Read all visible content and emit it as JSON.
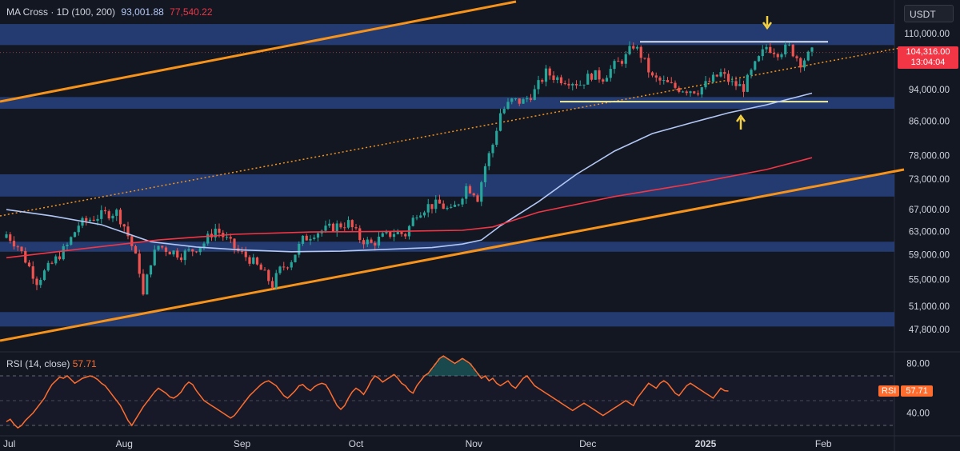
{
  "header": {
    "title": "MA Cross · 1D (100, 200)",
    "ma100_value": "93,001.88",
    "ma200_value": "77,540.22"
  },
  "currency": "USDT",
  "last_price": {
    "value": "104,316.00",
    "countdown": "13:04:04"
  },
  "rsi_header": {
    "label": "RSI (14, close)",
    "value": "57.71"
  },
  "rsi_tag": {
    "label": "RSI",
    "value": "57.71"
  },
  "colors": {
    "background": "#131722",
    "up": "#26a69a",
    "down": "#ef5350",
    "zone": "#2a4a8f",
    "trendline": "#f7931a",
    "ma100": "#b3c7f5",
    "ma200": "#f23645",
    "rsi": "#ff6d2e",
    "range_box": "#f0f0a0"
  },
  "chart_data": {
    "type": "candlestick",
    "scale": "log",
    "y_ticks": [
      "110,000.00",
      "94,000.00",
      "86,000.00",
      "78,000.00",
      "73,000.00",
      "67,000.00",
      "63,000.00",
      "59,000.00",
      "55,000.00",
      "51,000.00",
      "47,800.00"
    ],
    "y_tick_values": [
      110000,
      94000,
      86000,
      78000,
      73000,
      67000,
      63000,
      59000,
      55000,
      51000,
      47800
    ],
    "x_ticks": [
      "Jul",
      "Aug",
      "Sep",
      "Oct",
      "Nov",
      "Dec",
      "2025",
      "Jan_blank",
      "Feb"
    ],
    "x_labels": [
      "Jul",
      "Aug",
      "Sep",
      "Oct",
      "Nov",
      "Dec",
      "2025",
      "Feb"
    ],
    "x_label_days": [
      0,
      31,
      62,
      92,
      123,
      153,
      184,
      215
    ],
    "ylim": [
      46000,
      125000
    ],
    "close_anchors": [
      [
        0,
        62500
      ],
      [
        3,
        60500
      ],
      [
        6,
        57000
      ],
      [
        8,
        54800
      ],
      [
        12,
        57500
      ],
      [
        16,
        60500
      ],
      [
        19,
        64200
      ],
      [
        22,
        65200
      ],
      [
        26,
        66200
      ],
      [
        29,
        66500
      ],
      [
        31,
        64000
      ],
      [
        33,
        60500
      ],
      [
        35,
        56500
      ],
      [
        36,
        52500
      ],
      [
        38,
        58000
      ],
      [
        40,
        60500
      ],
      [
        43,
        59700
      ],
      [
        46,
        59000
      ],
      [
        49,
        59800
      ],
      [
        52,
        61000
      ],
      [
        55,
        63500
      ],
      [
        58,
        61500
      ],
      [
        61,
        59500
      ],
      [
        64,
        58300
      ],
      [
        67,
        56500
      ],
      [
        70,
        54200
      ],
      [
        72,
        56500
      ],
      [
        75,
        58200
      ],
      [
        78,
        61500
      ],
      [
        81,
        62800
      ],
      [
        84,
        63300
      ],
      [
        87,
        64000
      ],
      [
        90,
        64500
      ],
      [
        93,
        61800
      ],
      [
        96,
        60800
      ],
      [
        99,
        62000
      ],
      [
        102,
        62800
      ],
      [
        105,
        62500
      ],
      [
        108,
        66500
      ],
      [
        111,
        67700
      ],
      [
        114,
        68000
      ],
      [
        117,
        66600
      ],
      [
        119,
        68500
      ],
      [
        121,
        71500
      ],
      [
        123,
        70500
      ],
      [
        124,
        69300
      ],
      [
        126,
        75800
      ],
      [
        128,
        80500
      ],
      [
        130,
        88000
      ],
      [
        133,
        91000
      ],
      [
        136,
        90800
      ],
      [
        139,
        93500
      ],
      [
        142,
        98500
      ],
      [
        145,
        97000
      ],
      [
        148,
        96500
      ],
      [
        151,
        95500
      ],
      [
        154,
        98000
      ],
      [
        157,
        97200
      ],
      [
        160,
        100500
      ],
      [
        163,
        103000
      ],
      [
        165,
        106500
      ],
      [
        167,
        103500
      ],
      [
        170,
        97000
      ],
      [
        173,
        95800
      ],
      [
        176,
        94500
      ],
      [
        179,
        94000
      ],
      [
        182,
        93800
      ],
      [
        185,
        96000
      ],
      [
        188,
        98300
      ],
      [
        191,
        95500
      ],
      [
        194,
        94500
      ],
      [
        197,
        100500
      ],
      [
        200,
        106000
      ],
      [
        203,
        104500
      ],
      [
        206,
        105800
      ],
      [
        209,
        101500
      ],
      [
        212,
        104300
      ]
    ],
    "ma100": [
      [
        0,
        67000
      ],
      [
        12,
        65800
      ],
      [
        25,
        64200
      ],
      [
        38,
        61200
      ],
      [
        50,
        60300
      ],
      [
        62,
        59800
      ],
      [
        75,
        59500
      ],
      [
        88,
        59600
      ],
      [
        100,
        59900
      ],
      [
        112,
        60200
      ],
      [
        120,
        60800
      ],
      [
        125,
        61500
      ],
      [
        130,
        64000
      ],
      [
        140,
        68500
      ],
      [
        150,
        74000
      ],
      [
        160,
        79000
      ],
      [
        170,
        83000
      ],
      [
        180,
        85500
      ],
      [
        190,
        88000
      ],
      [
        200,
        90000
      ],
      [
        212,
        93000
      ]
    ],
    "ma200": [
      [
        0,
        58500
      ],
      [
        20,
        60000
      ],
      [
        40,
        61500
      ],
      [
        60,
        62500
      ],
      [
        80,
        62900
      ],
      [
        100,
        63000
      ],
      [
        120,
        63200
      ],
      [
        128,
        63800
      ],
      [
        140,
        66500
      ],
      [
        160,
        69500
      ],
      [
        180,
        72000
      ],
      [
        200,
        75000
      ],
      [
        212,
        77540
      ]
    ],
    "rsi": {
      "series_x_step_days": 1,
      "levels": [
        70,
        50,
        30
      ],
      "ticks": [
        "80.00",
        "40.00"
      ],
      "tick_values": [
        80,
        40
      ],
      "last": 57.71,
      "values": [
        33,
        35,
        31,
        28,
        30,
        34,
        37,
        40,
        44,
        48,
        52,
        58,
        63,
        66,
        69,
        68,
        70,
        67,
        64,
        66,
        68,
        69,
        70,
        69,
        67,
        64,
        62,
        58,
        54,
        50,
        46,
        40,
        34,
        30,
        35,
        40,
        45,
        49,
        53,
        57,
        60,
        58,
        56,
        53,
        52,
        54,
        57,
        62,
        65,
        63,
        58,
        54,
        50,
        48,
        46,
        44,
        42,
        40,
        38,
        36,
        38,
        42,
        46,
        50,
        54,
        57,
        60,
        63,
        65,
        66,
        64,
        62,
        58,
        54,
        52,
        55,
        58,
        62,
        63,
        60,
        58,
        61,
        63,
        64,
        63,
        58,
        52,
        46,
        43,
        46,
        52,
        57,
        60,
        58,
        55,
        60,
        66,
        70,
        68,
        65,
        67,
        69,
        71,
        68,
        64,
        62,
        58,
        56,
        62,
        66,
        70,
        72,
        76,
        80,
        84,
        86,
        84,
        82,
        80,
        82,
        84,
        82,
        80,
        76,
        72,
        68,
        70,
        66,
        68,
        64,
        62,
        64,
        66,
        62,
        60,
        64,
        68,
        70,
        66,
        62,
        60,
        58,
        56,
        54,
        52,
        50,
        48,
        46,
        44,
        42,
        44,
        46,
        48,
        46,
        44,
        42,
        40,
        38,
        40,
        42,
        44,
        46,
        48,
        50,
        48,
        46,
        52,
        56,
        60,
        64,
        62,
        60,
        64,
        66,
        64,
        60,
        56,
        54,
        58,
        62,
        64,
        62,
        60,
        58,
        56,
        54,
        52,
        56,
        60,
        58,
        57.71
      ]
    },
    "support_resistance_zones": [
      [
        106500,
        113000
      ],
      [
        89000,
        92000
      ],
      [
        69500,
        74000
      ],
      [
        59500,
        61200
      ],
      [
        48200,
        50200
      ]
    ],
    "range_box": {
      "top": 107500,
      "bottom": 90800
    }
  }
}
